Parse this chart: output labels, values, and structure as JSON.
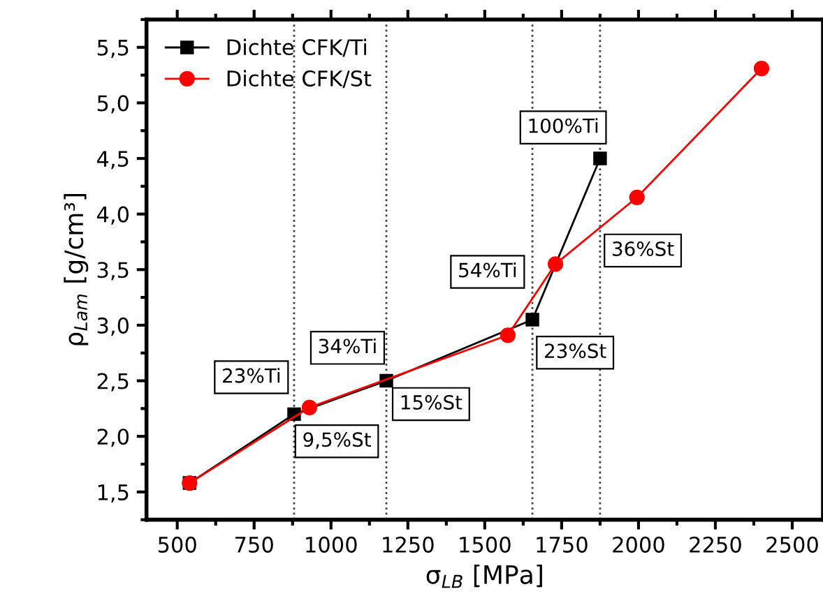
{
  "chart_data": {
    "type": "line",
    "xlabel": "σ$_{LB}$ [MPa]",
    "ylabel": "ρ$_{Lam}$ [g/cm³]",
    "xlim": [
      400,
      2600
    ],
    "xticks": [
      500,
      750,
      1000,
      1250,
      1500,
      1750,
      2000,
      2250,
      2500
    ],
    "ylim": [
      1.25,
      5.75
    ],
    "yticks": [
      {
        "value": 1.5,
        "label": "1,5"
      },
      {
        "value": 2.0,
        "label": "2,0"
      },
      {
        "value": 2.5,
        "label": "2,5"
      },
      {
        "value": 3.0,
        "label": "3,0"
      },
      {
        "value": 3.5,
        "label": "3,5"
      },
      {
        "value": 4.0,
        "label": "4,0"
      },
      {
        "value": 4.5,
        "label": "4,5"
      },
      {
        "value": 5.0,
        "label": "5,0"
      },
      {
        "value": 5.5,
        "label": "5,5"
      }
    ],
    "series": [
      {
        "name": "Dichte CFK/Ti",
        "color": "#000000",
        "marker": "square",
        "x": [
          540,
          880,
          1180,
          1655,
          1875
        ],
        "values": [
          1.58,
          2.2,
          2.5,
          3.05,
          4.5
        ]
      },
      {
        "name": "Dichte CFK/St",
        "color": "#ff0000",
        "marker": "circle",
        "x": [
          540,
          930,
          1575,
          1730,
          1995,
          2400
        ],
        "values": [
          1.58,
          2.26,
          2.91,
          3.55,
          4.15,
          5.31
        ]
      }
    ],
    "ref_lines": [
      {
        "axis": "x",
        "value": 880,
        "color": "#404040",
        "line_style": "dotted"
      },
      {
        "axis": "x",
        "value": 1180,
        "color": "#404040",
        "line_style": "dotted"
      },
      {
        "axis": "x",
        "value": 1655,
        "color": "#404040",
        "line_style": "dotted"
      },
      {
        "axis": "x",
        "value": 1875,
        "color": "#404040",
        "line_style": "dotted"
      }
    ],
    "annotations": [
      {
        "text": "23%Ti",
        "x": 880,
        "y": 2.2
      },
      {
        "text": "34%Ti",
        "x": 1180,
        "y": 2.5
      },
      {
        "text": "9,5%St",
        "x": 880,
        "y": 2.2
      },
      {
        "text": "15%St",
        "x": 1180,
        "y": 2.5
      },
      {
        "text": "23%St",
        "x": 1655,
        "y": 3.05
      },
      {
        "text": "54%Ti",
        "x": 1730,
        "y": 3.55
      },
      {
        "text": "36%St",
        "x": 1730,
        "y": 3.55
      },
      {
        "text": "100%Ti",
        "x": 1875,
        "y": 4.5
      }
    ],
    "legend": "top left",
    "grid": false
  }
}
